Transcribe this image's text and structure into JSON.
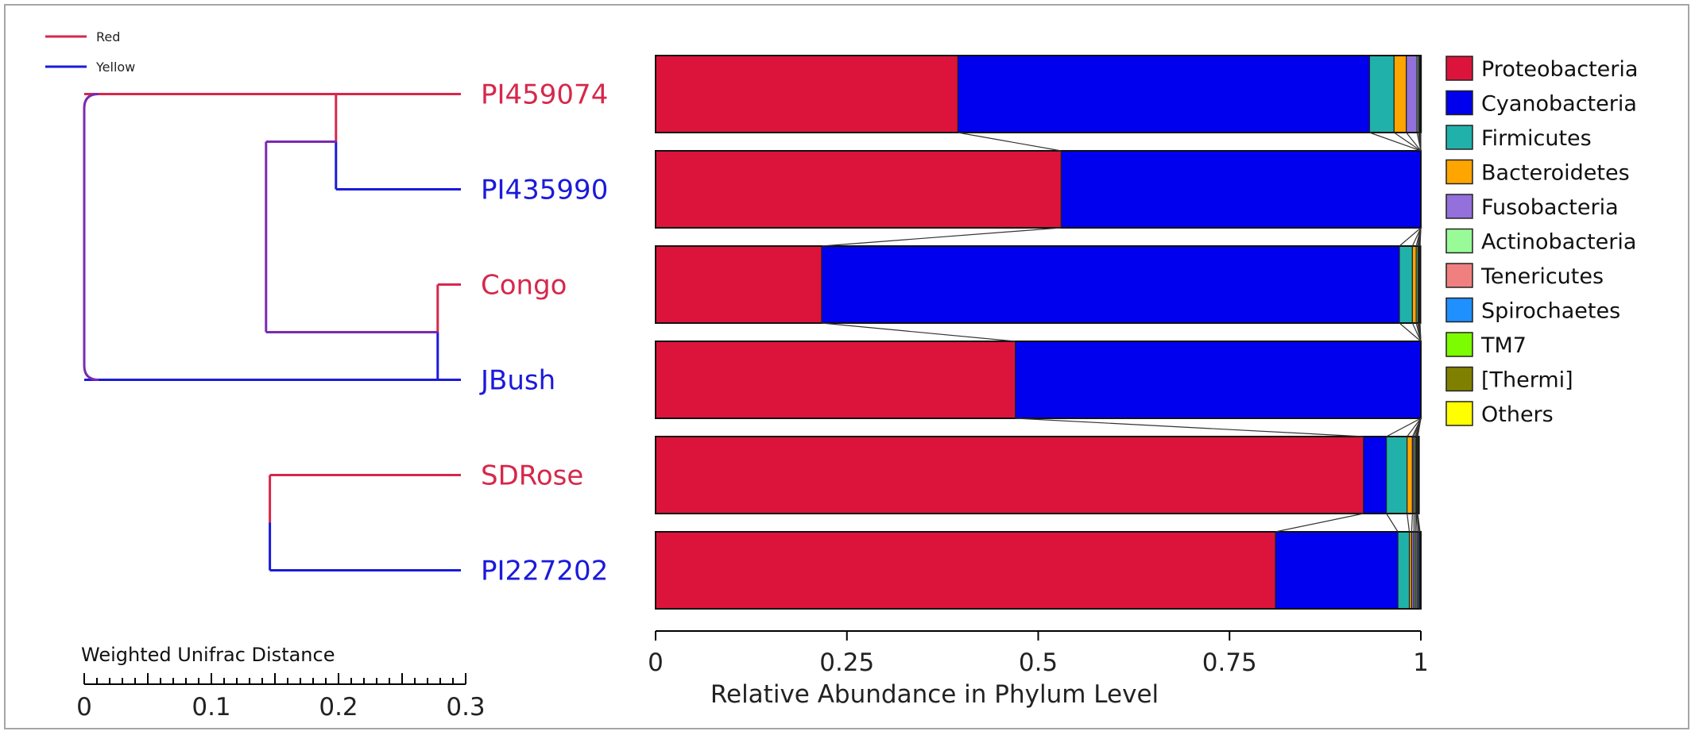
{
  "chart_data": {
    "type": "bar",
    "orientation": "horizontal",
    "stacked": true,
    "categories": [
      "PI459074",
      "PI435990",
      "Congo",
      "JBush",
      "SDRose",
      "PI227202"
    ],
    "group_legend": [
      {
        "label": "Red",
        "color": "#d6284b"
      },
      {
        "label": "Yellow",
        "color": "#1a1adb"
      }
    ],
    "sample_groups": [
      "Red",
      "Yellow",
      "Red",
      "Yellow",
      "Red",
      "Yellow"
    ],
    "series": [
      {
        "name": "Proteobacteria",
        "color": "#dc143c",
        "values": [
          0.395,
          0.53,
          0.217,
          0.47,
          0.925,
          0.81
        ]
      },
      {
        "name": "Cyanobacteria",
        "color": "#0000ee",
        "values": [
          0.538,
          0.47,
          0.755,
          0.53,
          0.03,
          0.16
        ]
      },
      {
        "name": "Firmicutes",
        "color": "#20b2aa",
        "values": [
          0.032,
          0,
          0.017,
          0,
          0.027,
          0.015
        ]
      },
      {
        "name": "Bacteroidetes",
        "color": "#ffa500",
        "values": [
          0.016,
          0,
          0.005,
          0,
          0.007,
          0.003
        ]
      },
      {
        "name": "Fusobacteria",
        "color": "#9370db",
        "values": [
          0.014,
          0,
          0,
          0,
          0.002,
          0.003
        ]
      },
      {
        "name": "Actinobacteria",
        "color": "#98fb98",
        "values": [
          0.002,
          0,
          0.002,
          0,
          0.002,
          0.002
        ]
      },
      {
        "name": "Tenericutes",
        "color": "#f08080",
        "values": [
          0.001,
          0,
          0.001,
          0,
          0.001,
          0.002
        ]
      },
      {
        "name": "Spirochaetes",
        "color": "#1e90ff",
        "values": [
          0.001,
          0,
          0.001,
          0,
          0.001,
          0.002
        ]
      },
      {
        "name": "TM7",
        "color": "#7cfc00",
        "values": [
          0.0005,
          0,
          0.0005,
          0,
          0.0005,
          0.001
        ]
      },
      {
        "name": "[Thermi]",
        "color": "#808000",
        "values": [
          0.0005,
          0,
          0.0005,
          0,
          0.0005,
          0.001
        ]
      },
      {
        "name": "Others",
        "color": "#ffff00",
        "values": [
          0.0005,
          0,
          0.0005,
          0,
          0.0015,
          0.001
        ]
      }
    ],
    "xlabel": "Relative Abundance in Phylum Level",
    "xlim": [
      0,
      1
    ],
    "xticks": [
      "0",
      "0.25",
      "0.5",
      "0.75",
      "1"
    ],
    "xtick_values": [
      0,
      0.25,
      0.5,
      0.75,
      1
    ],
    "grid": false,
    "legend_position": "right",
    "dendrogram": {
      "scale_label": "Weighted Unifrac Distance",
      "scale_ticks": [
        "0",
        "0.1",
        "0.2",
        "0.3"
      ],
      "scale_tick_values": [
        0,
        0.1,
        0.2,
        0.3
      ],
      "scale_range": [
        0,
        0.3
      ],
      "branch_color": "#7b2ab0",
      "clusters": [
        {
          "members": [
            "PI459074",
            "PI435990"
          ],
          "height": 0.198
        },
        {
          "members": [
            "Congo",
            "JBush"
          ],
          "height": 0.278
        },
        {
          "members": [
            "SDRose",
            "PI227202"
          ],
          "height": 0.146
        },
        {
          "members": [
            "PI459074",
            "PI435990",
            "Congo",
            "JBush"
          ],
          "height": 0.143
        },
        {
          "members": [
            "PI459074",
            "PI435990",
            "Congo",
            "JBush",
            "SDRose",
            "PI227202"
          ],
          "height": 0.0
        }
      ]
    }
  }
}
